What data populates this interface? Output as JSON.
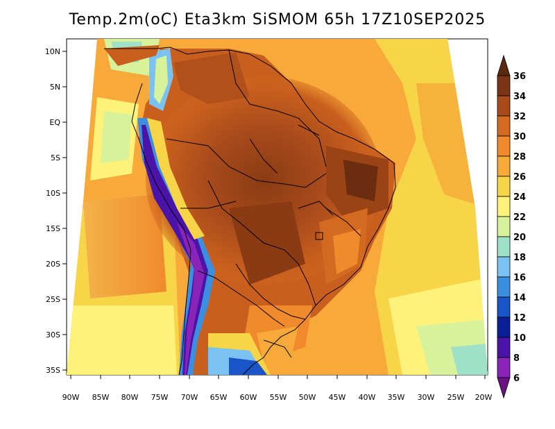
{
  "title": "Temp.2m(oC) Eta3km SiSMOM 65h 17Z10SEP2025",
  "lon_labels": [
    "90W",
    "85W",
    "80W",
    "75W",
    "70W",
    "65W",
    "60W",
    "55W",
    "50W",
    "45W",
    "40W",
    "35W",
    "30W",
    "25W",
    "20W"
  ],
  "lat_labels": [
    "10N",
    "5N",
    "EQ",
    "5S",
    "10S",
    "15S",
    "20S",
    "25S",
    "30S",
    "35S"
  ],
  "colorbar": {
    "labels": [
      "36",
      "34",
      "32",
      "30",
      "28",
      "26",
      "24",
      "22",
      "20",
      "18",
      "16",
      "14",
      "12",
      "10",
      "8",
      "6"
    ],
    "colors": [
      "#5a2a10",
      "#7b3414",
      "#a84b1b",
      "#d46a1f",
      "#f08a2c",
      "#f7a93a",
      "#f8d448",
      "#fff27a",
      "#d7f29a",
      "#9fe0c8",
      "#7ac2f2",
      "#3c8fe0",
      "#1a55c8",
      "#0b1f98",
      "#4b14a8",
      "#8a24b8",
      "#6a1282"
    ]
  }
}
